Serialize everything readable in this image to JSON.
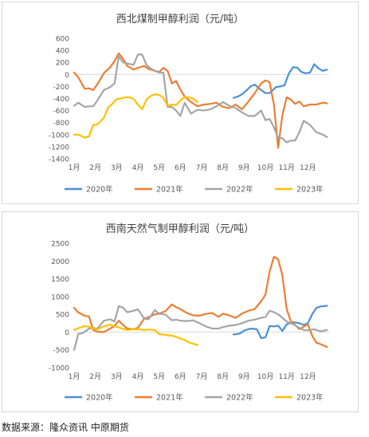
{
  "source_note": "数据来源：隆众资讯 中原期货",
  "chart_data": [
    {
      "type": "line",
      "title": "西北煤制甲醇利润（元/吨）",
      "xlabel": "",
      "ylabel": "",
      "ylim": [
        -1400,
        600
      ],
      "yticks": [
        600,
        400,
        200,
        0,
        -200,
        -400,
        -600,
        -800,
        -1000,
        -1200,
        -1400
      ],
      "xlim": [
        1,
        13
      ],
      "xticks": [
        "1月",
        "2月",
        "3月",
        "4月",
        "5月",
        "6月",
        "7月",
        "8月",
        "9月",
        "10月",
        "11月",
        "12月"
      ],
      "grid": false,
      "legend": "bottom",
      "colors": {
        "2020年": "#4a90d9",
        "2021年": "#ed7d31",
        "2022年": "#a5a5a5",
        "2023年": "#ffc000"
      },
      "series": [
        {
          "name": "2020年",
          "color": "#4a90d9",
          "x": [
            8.5,
            8.7,
            8.9,
            9.1,
            9.3,
            9.5,
            9.6,
            9.8,
            10.0,
            10.2,
            10.5,
            10.7,
            10.9,
            11.1,
            11.3,
            11.5,
            11.7,
            11.9,
            12.1,
            12.3,
            12.5,
            12.7,
            12.9
          ],
          "y": [
            -390,
            -370,
            -330,
            -270,
            -200,
            -170,
            -200,
            -260,
            -310,
            -310,
            -210,
            -200,
            -180,
            10,
            120,
            110,
            40,
            20,
            30,
            170,
            100,
            60,
            80
          ]
        },
        {
          "name": "2021年",
          "color": "#ed7d31",
          "x": [
            1.0,
            1.2,
            1.5,
            1.7,
            1.9,
            2.1,
            2.4,
            2.7,
            2.9,
            3.1,
            3.3,
            3.5,
            3.8,
            4.0,
            4.3,
            4.5,
            4.8,
            5.0,
            5.2,
            5.4,
            5.6,
            5.8,
            6.0,
            6.2,
            6.5,
            6.8,
            7.1,
            7.4,
            7.7,
            8.0,
            8.3,
            8.6,
            8.9,
            9.2,
            9.5,
            9.8,
            10.0,
            10.2,
            10.4,
            10.6,
            10.8,
            11.0,
            11.2,
            11.4,
            11.6,
            11.8,
            12.1,
            12.4,
            12.7,
            12.9
          ],
          "y": [
            30,
            -50,
            -240,
            -230,
            -260,
            -160,
            20,
            120,
            220,
            350,
            260,
            140,
            80,
            110,
            140,
            90,
            60,
            40,
            110,
            60,
            -150,
            -110,
            -250,
            -370,
            -460,
            -530,
            -500,
            -490,
            -470,
            -540,
            -560,
            -500,
            -580,
            -450,
            -310,
            -150,
            -100,
            -130,
            -500,
            -1220,
            -680,
            -380,
            -420,
            -490,
            -450,
            -530,
            -500,
            -500,
            -470,
            -480
          ]
        },
        {
          "name": "2022年",
          "color": "#a5a5a5",
          "x": [
            1.0,
            1.2,
            1.5,
            1.7,
            1.9,
            2.1,
            2.4,
            2.7,
            2.9,
            3.1,
            3.3,
            3.5,
            3.8,
            4.0,
            4.2,
            4.4,
            4.6,
            4.8,
            5.0,
            5.2,
            5.4,
            5.6,
            5.8,
            6.0,
            6.2,
            6.5,
            6.8,
            7.1,
            7.4,
            7.7,
            8.0,
            8.3,
            8.6,
            8.9,
            9.2,
            9.5,
            9.8,
            10.0,
            10.2,
            10.4,
            10.6,
            10.8,
            11.0,
            11.2,
            11.4,
            11.6,
            11.8,
            12.1,
            12.4,
            12.7,
            12.9
          ],
          "y": [
            -520,
            -470,
            -540,
            -530,
            -530,
            -430,
            -260,
            -210,
            -150,
            300,
            200,
            180,
            160,
            330,
            330,
            160,
            100,
            60,
            30,
            30,
            -540,
            -540,
            -600,
            -690,
            -470,
            -650,
            -590,
            -600,
            -580,
            -530,
            -460,
            -520,
            -560,
            -630,
            -690,
            -690,
            -600,
            -760,
            -740,
            -880,
            -1050,
            -1060,
            -1130,
            -1100,
            -1100,
            -960,
            -770,
            -840,
            -960,
            -1000,
            -1040
          ]
        },
        {
          "name": "2023年",
          "color": "#ffc000",
          "x": [
            1.0,
            1.2,
            1.5,
            1.7,
            1.9,
            2.1,
            2.4,
            2.6,
            2.8,
            3.0,
            3.2,
            3.4,
            3.6,
            3.8,
            4.0,
            4.2,
            4.4,
            4.6,
            4.8,
            5.0,
            5.2,
            5.4,
            5.6,
            5.8,
            6.0,
            6.2,
            6.4,
            6.6,
            6.8
          ],
          "y": [
            -1000,
            -1000,
            -1050,
            -1030,
            -840,
            -830,
            -720,
            -550,
            -490,
            -410,
            -400,
            -380,
            -380,
            -410,
            -500,
            -580,
            -420,
            -360,
            -330,
            -340,
            -390,
            -520,
            -500,
            -510,
            -430,
            -380,
            -380,
            -400,
            -460
          ]
        }
      ]
    },
    {
      "type": "line",
      "title": "西南天然气制甲醇利润（元/吨）",
      "xlabel": "",
      "ylabel": "",
      "ylim": [
        -1000,
        2500
      ],
      "yticks": [
        2500,
        2000,
        1500,
        1000,
        500,
        0,
        -500,
        -1000
      ],
      "xlim": [
        1,
        13
      ],
      "xticks": [
        "1月",
        "2月",
        "3月",
        "4月",
        "5月",
        "6月",
        "7月",
        "8月",
        "9月",
        "10月",
        "11月",
        "12月"
      ],
      "grid": false,
      "legend": "bottom",
      "colors": {
        "2020年": "#4a90d9",
        "2021年": "#ed7d31",
        "2022年": "#a5a5a5",
        "2023年": "#ffc000"
      },
      "series": [
        {
          "name": "2020年",
          "color": "#4a90d9",
          "x": [
            8.5,
            8.8,
            9.0,
            9.3,
            9.6,
            9.8,
            10.0,
            10.2,
            10.4,
            10.6,
            10.8,
            11.0,
            11.3,
            11.6,
            11.8,
            12.0,
            12.2,
            12.4,
            12.6,
            12.9
          ],
          "y": [
            -70,
            -40,
            40,
            100,
            80,
            -170,
            -150,
            170,
            160,
            180,
            30,
            220,
            280,
            250,
            200,
            250,
            500,
            680,
            720,
            740
          ]
        },
        {
          "name": "2021年",
          "color": "#ed7d31",
          "x": [
            1.0,
            1.2,
            1.5,
            1.7,
            1.9,
            2.1,
            2.4,
            2.7,
            2.9,
            3.1,
            3.3,
            3.5,
            3.8,
            4.0,
            4.3,
            4.5,
            4.8,
            5.0,
            5.3,
            5.6,
            5.8,
            6.0,
            6.3,
            6.6,
            6.9,
            7.2,
            7.5,
            7.8,
            8.0,
            8.3,
            8.6,
            8.9,
            9.2,
            9.5,
            9.8,
            10.0,
            10.2,
            10.4,
            10.6,
            10.8,
            11.0,
            11.2,
            11.4,
            11.6,
            11.8,
            12.0,
            12.2,
            12.4,
            12.6,
            12.9
          ],
          "y": [
            680,
            550,
            460,
            440,
            60,
            10,
            0,
            100,
            170,
            320,
            200,
            100,
            80,
            120,
            380,
            420,
            500,
            520,
            590,
            780,
            700,
            650,
            540,
            470,
            460,
            510,
            540,
            430,
            520,
            470,
            400,
            520,
            600,
            650,
            870,
            1050,
            1700,
            2120,
            2050,
            1600,
            650,
            300,
            200,
            80,
            150,
            220,
            -100,
            -300,
            -340,
            -420
          ]
        },
        {
          "name": "2022年",
          "color": "#a5a5a5",
          "x": [
            1.0,
            1.2,
            1.4,
            1.7,
            1.9,
            2.1,
            2.4,
            2.7,
            2.9,
            3.1,
            3.3,
            3.5,
            3.8,
            4.0,
            4.3,
            4.5,
            4.8,
            5.0,
            5.3,
            5.6,
            5.8,
            6.0,
            6.3,
            6.6,
            6.9,
            7.2,
            7.5,
            7.8,
            8.0,
            8.3,
            8.6,
            8.9,
            9.2,
            9.5,
            9.8,
            10.0,
            10.2,
            10.4,
            10.6,
            10.8,
            11.0,
            11.3,
            11.6,
            11.8,
            12.0,
            12.3,
            12.6,
            12.9
          ],
          "y": [
            -500,
            -50,
            -30,
            100,
            110,
            100,
            320,
            360,
            300,
            730,
            690,
            560,
            600,
            640,
            380,
            360,
            620,
            520,
            490,
            330,
            350,
            320,
            310,
            330,
            250,
            160,
            100,
            100,
            140,
            180,
            200,
            250,
            320,
            350,
            400,
            420,
            600,
            560,
            500,
            400,
            300,
            220,
            120,
            60,
            50,
            80,
            20,
            60
          ]
        },
        {
          "name": "2023年",
          "color": "#ffc000",
          "x": [
            1.0,
            1.2,
            1.5,
            1.7,
            1.9,
            2.1,
            2.4,
            2.7,
            2.9,
            3.1,
            3.3,
            3.5,
            3.8,
            4.0,
            4.3,
            4.5,
            4.8,
            5.0,
            5.2,
            5.4,
            5.6,
            5.8,
            6.0,
            6.2,
            6.4,
            6.6,
            6.8
          ],
          "y": [
            60,
            110,
            170,
            150,
            100,
            80,
            160,
            210,
            160,
            130,
            90,
            60,
            80,
            80,
            60,
            70,
            60,
            -60,
            -70,
            -90,
            -100,
            -130,
            -180,
            -220,
            -290,
            -330,
            -360
          ]
        }
      ]
    }
  ]
}
